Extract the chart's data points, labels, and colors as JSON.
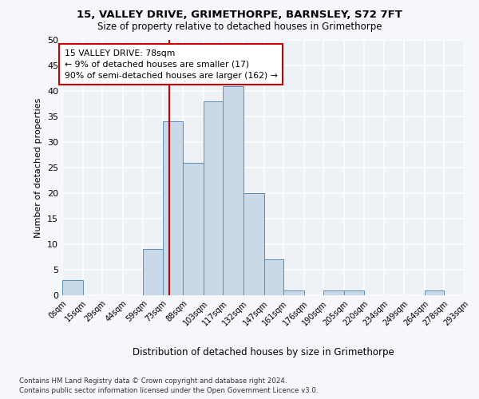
{
  "title1": "15, VALLEY DRIVE, GRIMETHORPE, BARNSLEY, S72 7FT",
  "title2": "Size of property relative to detached houses in Grimethorpe",
  "xlabel": "Distribution of detached houses by size in Grimethorpe",
  "ylabel": "Number of detached properties",
  "bar_edges": [
    0,
    15,
    29,
    44,
    59,
    73,
    88,
    103,
    117,
    132,
    147,
    161,
    176,
    190,
    205,
    220,
    234,
    249,
    264,
    278,
    293
  ],
  "bar_labels": [
    "0sqm",
    "15sqm",
    "29sqm",
    "44sqm",
    "59sqm",
    "73sqm",
    "88sqm",
    "103sqm",
    "117sqm",
    "132sqm",
    "147sqm",
    "161sqm",
    "176sqm",
    "190sqm",
    "205sqm",
    "220sqm",
    "234sqm",
    "249sqm",
    "264sqm",
    "278sqm",
    "293sqm"
  ],
  "bar_heights": [
    3,
    0,
    0,
    0,
    9,
    34,
    26,
    38,
    41,
    20,
    7,
    1,
    0,
    1,
    1,
    0,
    0,
    0,
    1,
    0
  ],
  "bar_color": "#c9d9e8",
  "bar_edgecolor": "#5b8db8",
  "property_line_x": 78,
  "property_line_color": "#cc0000",
  "annotation_text": "15 VALLEY DRIVE: 78sqm\n← 9% of detached houses are smaller (17)\n90% of semi-detached houses are larger (162) →",
  "annotation_box_color": "#ffffff",
  "annotation_box_edgecolor": "#cc0000",
  "ylim": [
    0,
    50
  ],
  "yticks": [
    0,
    5,
    10,
    15,
    20,
    25,
    30,
    35,
    40,
    45,
    50
  ],
  "background_color": "#eef2f7",
  "grid_color": "#ffffff",
  "footer1": "Contains HM Land Registry data © Crown copyright and database right 2024.",
  "footer2": "Contains public sector information licensed under the Open Government Licence v3.0."
}
